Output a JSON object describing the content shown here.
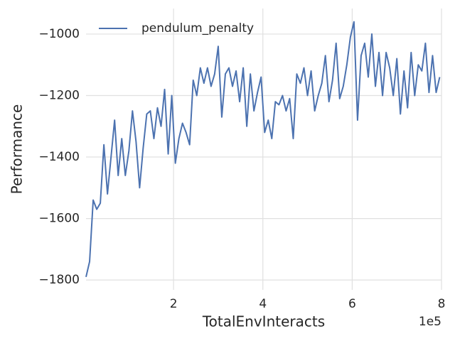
{
  "chart_data": {
    "type": "line",
    "xlabel": "TotalEnvInteracts",
    "ylabel": "Performance",
    "x_offset_label": "1e5",
    "x": [
      4000,
      12000,
      20000,
      28000,
      36000,
      44000,
      52000,
      60000,
      68000,
      76000,
      84000,
      92000,
      100000,
      108000,
      116000,
      124000,
      132000,
      140000,
      148000,
      156000,
      164000,
      172000,
      180000,
      188000,
      196000,
      204000,
      212000,
      220000,
      228000,
      236000,
      244000,
      252000,
      260000,
      268000,
      276000,
      284000,
      292000,
      300000,
      308000,
      316000,
      324000,
      332000,
      340000,
      348000,
      356000,
      364000,
      372000,
      380000,
      388000,
      396000,
      404000,
      412000,
      420000,
      428000,
      436000,
      444000,
      452000,
      460000,
      468000,
      476000,
      484000,
      492000,
      500000,
      508000,
      516000,
      524000,
      532000,
      540000,
      548000,
      556000,
      564000,
      572000,
      580000,
      588000,
      596000,
      604000,
      612000,
      620000,
      628000,
      636000,
      644000,
      652000,
      660000,
      668000,
      676000,
      684000,
      692000,
      700000,
      708000,
      716000,
      724000,
      732000,
      740000,
      748000,
      756000,
      764000,
      772000,
      780000,
      788000,
      796000
    ],
    "series": [
      {
        "name": "pendulum_penalty",
        "color": "#4c72b0",
        "values": [
          -1790,
          -1740,
          -1540,
          -1570,
          -1550,
          -1360,
          -1520,
          -1400,
          -1280,
          -1460,
          -1340,
          -1460,
          -1380,
          -1250,
          -1350,
          -1500,
          -1370,
          -1260,
          -1250,
          -1340,
          -1240,
          -1300,
          -1180,
          -1390,
          -1200,
          -1420,
          -1340,
          -1290,
          -1320,
          -1360,
          -1150,
          -1200,
          -1110,
          -1160,
          -1110,
          -1170,
          -1130,
          -1040,
          -1270,
          -1130,
          -1110,
          -1170,
          -1120,
          -1220,
          -1110,
          -1300,
          -1130,
          -1250,
          -1190,
          -1140,
          -1320,
          -1280,
          -1340,
          -1220,
          -1230,
          -1200,
          -1250,
          -1210,
          -1340,
          -1130,
          -1160,
          -1110,
          -1200,
          -1120,
          -1250,
          -1200,
          -1160,
          -1070,
          -1220,
          -1150,
          -1030,
          -1210,
          -1170,
          -1100,
          -1010,
          -960,
          -1280,
          -1070,
          -1030,
          -1140,
          -1000,
          -1170,
          -1060,
          -1200,
          -1060,
          -1110,
          -1200,
          -1080,
          -1260,
          -1120,
          -1240,
          -1060,
          -1200,
          -1100,
          -1120,
          -1030,
          -1190,
          -1070,
          -1190,
          -1140
        ]
      }
    ],
    "xlim": [
      4000,
      800000
    ],
    "xticks": [
      {
        "value": 200000,
        "label": "2"
      },
      {
        "value": 400000,
        "label": "4"
      },
      {
        "value": 600000,
        "label": "6"
      },
      {
        "value": 800000,
        "label": "8"
      }
    ],
    "ylim": [
      -1832,
      -917
    ],
    "yticks": [
      {
        "value": -1800,
        "label": "−1800"
      },
      {
        "value": -1600,
        "label": "−1600"
      },
      {
        "value": -1400,
        "label": "−1400"
      },
      {
        "value": -1200,
        "label": "−1200"
      },
      {
        "value": -1000,
        "label": "−1000"
      }
    ],
    "grid": true,
    "legend": "upper-left"
  }
}
